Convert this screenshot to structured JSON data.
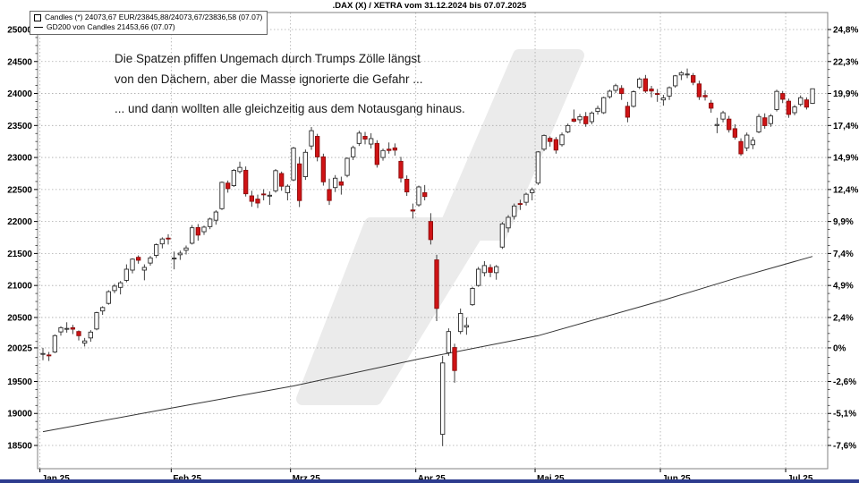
{
  "title": ".DAX (X) / XETRA vom 31.12.2024 bis 07.07.2025",
  "legend": {
    "candles": "Candles (*) 24073,67 EUR/23845,88/24073,67/23836,58 (07.07)",
    "gd200": "GD200 von Candles 21453,66 (07.07)"
  },
  "annotation": {
    "line1": "Die Spatzen pfiffen Ungemach durch Trumps Zölle längst",
    "line2": "von den Dächern, aber die Masse ignorierte die Gefahr ...",
    "line3": "... und dann wollten alle gleichzeitig aus dem Notausgang hinaus."
  },
  "colors": {
    "up_candle": "#ffffff",
    "up_border": "#2b2b2b",
    "down_candle": "#cf1315",
    "down_border": "#8c0d0d",
    "wick": "#2b2b2b",
    "ma_line": "#333333",
    "grid": "#aaaaaa",
    "frame": "#808080",
    "watermark": "#ebebeb",
    "footer_bar": "#2d3c8e",
    "text": "#000000"
  },
  "chart_data": {
    "type": "candlestick",
    "instrument": ".DAX (X) / XETRA",
    "period": "31.12.2024 bis 07.07.2025",
    "last_quote": {
      "date": "07.07",
      "close": "24073,67",
      "open": "23845,88",
      "high": "24073,67",
      "low": "23836,58",
      "currency": "EUR"
    },
    "moving_average": {
      "name": "GD200 von Candles",
      "last_value": "21453,66",
      "last_date": "07.07"
    },
    "y_left_labels": [
      25000,
      24500,
      24000,
      23500,
      23000,
      22500,
      22000,
      21500,
      21000,
      20500,
      20025,
      19500,
      19000,
      18500
    ],
    "y_right_percent_labels": [
      "24,8%",
      "22,3%",
      "19,9%",
      "17,4%",
      "14,9%",
      "12,4%",
      "9,9%",
      "7,4%",
      "4,9%",
      "2,4%",
      "0%",
      "-2,6%",
      "-5,1%",
      "-7,6%"
    ],
    "percent_base_value": 20025,
    "y_minor_tick_step": 125,
    "x_months": [
      {
        "label": "Jan 25",
        "day_index": 0
      },
      {
        "label": "Feb 25",
        "day_index": 22
      },
      {
        "label": "Mrz 25",
        "day_index": 42
      },
      {
        "label": "Apr 25",
        "day_index": 63
      },
      {
        "label": "Mai 25",
        "day_index": 83
      },
      {
        "label": "Jun 25",
        "day_index": 104
      },
      {
        "label": "Jul 25",
        "day_index": 125
      }
    ],
    "candles": [
      [
        "02.01",
        19924,
        20025,
        19832,
        19937
      ],
      [
        "03.01",
        19914,
        19961,
        19820,
        19906
      ],
      [
        "06.01",
        19960,
        20236,
        19943,
        20216
      ],
      [
        "07.01",
        20274,
        20363,
        20216,
        20340
      ],
      [
        "08.01",
        20318,
        20425,
        20263,
        20329
      ],
      [
        "09.01",
        20340,
        20385,
        20240,
        20317
      ],
      [
        "10.01",
        20280,
        20298,
        20141,
        20215
      ],
      [
        "13.01",
        20100,
        20180,
        20046,
        20133
      ],
      [
        "14.01",
        20180,
        20302,
        20120,
        20271
      ],
      [
        "15.01",
        20320,
        20590,
        20300,
        20575
      ],
      [
        "16.01",
        20602,
        20675,
        20540,
        20655
      ],
      [
        "17.01",
        20720,
        20925,
        20700,
        20903
      ],
      [
        "20.01",
        20920,
        21023,
        20880,
        20990
      ],
      [
        "21.01",
        20970,
        21070,
        20860,
        21042
      ],
      [
        "22.01",
        21080,
        21330,
        21050,
        21254
      ],
      [
        "23.01",
        21240,
        21425,
        21190,
        21412
      ],
      [
        "24.01",
        21440,
        21470,
        21340,
        21394
      ],
      [
        "27.01",
        21240,
        21330,
        21081,
        21282
      ],
      [
        "28.01",
        21350,
        21462,
        21310,
        21431
      ],
      [
        "29.01",
        21470,
        21657,
        21430,
        21637
      ],
      [
        "30.01",
        21650,
        21752,
        21580,
        21727
      ],
      [
        "31.01",
        21740,
        21801,
        21640,
        21732
      ],
      [
        "03.02",
        21425,
        21530,
        21252,
        21428
      ],
      [
        "04.02",
        21480,
        21545,
        21400,
        21505
      ],
      [
        "05.02",
        21550,
        21625,
        21485,
        21586
      ],
      [
        "06.02",
        21660,
        21945,
        21640,
        21902
      ],
      [
        "07.02",
        21905,
        21960,
        21700,
        21787
      ],
      [
        "10.02",
        21840,
        21935,
        21790,
        21912
      ],
      [
        "11.02",
        21920,
        22060,
        21880,
        22038
      ],
      [
        "12.02",
        22020,
        22176,
        21950,
        22148
      ],
      [
        "13.02",
        22200,
        22625,
        22180,
        22612
      ],
      [
        "14.02",
        22600,
        22640,
        22450,
        22513
      ],
      [
        "17.02",
        22560,
        22820,
        22540,
        22799
      ],
      [
        "18.02",
        22780,
        22935,
        22750,
        22845
      ],
      [
        "19.02",
        22800,
        22860,
        22390,
        22433
      ],
      [
        "20.02",
        22400,
        22480,
        22230,
        22315
      ],
      [
        "21.02",
        22350,
        22420,
        22210,
        22288
      ],
      [
        "24.02",
        22430,
        22505,
        22330,
        22425
      ],
      [
        "25.02",
        22400,
        22470,
        22260,
        22410
      ],
      [
        "26.02",
        22480,
        22820,
        22450,
        22794
      ],
      [
        "27.02",
        22750,
        22780,
        22480,
        22551
      ],
      [
        "28.02",
        22450,
        22580,
        22330,
        22551
      ],
      [
        "03.03",
        22650,
        23166,
        22630,
        23147
      ],
      [
        "04.03",
        22900,
        23010,
        22226,
        22327
      ],
      [
        "05.03",
        22700,
        23125,
        22650,
        23081
      ],
      [
        "06.03",
        23180,
        23476,
        23120,
        23419
      ],
      [
        "07.03",
        23330,
        23370,
        22940,
        23009
      ],
      [
        "10.03",
        23010,
        23060,
        22560,
        22620
      ],
      [
        "11.03",
        22500,
        22670,
        22258,
        22328
      ],
      [
        "12.03",
        22530,
        22725,
        22460,
        22676
      ],
      [
        "13.03",
        22620,
        22700,
        22420,
        22567
      ],
      [
        "14.03",
        22720,
        23000,
        22690,
        22987
      ],
      [
        "17.03",
        23010,
        23185,
        22960,
        23154
      ],
      [
        "18.03",
        23220,
        23419,
        23180,
        23381
      ],
      [
        "19.03",
        23330,
        23400,
        23205,
        23288
      ],
      [
        "20.03",
        23210,
        23380,
        23140,
        23295
      ],
      [
        "21.03",
        23220,
        23270,
        22842,
        22891
      ],
      [
        "24.03",
        23000,
        23140,
        22950,
        23109
      ],
      [
        "25.03",
        23130,
        23235,
        23060,
        23110
      ],
      [
        "26.03",
        23150,
        23220,
        23030,
        23115
      ],
      [
        "27.03",
        22940,
        23010,
        22610,
        22679
      ],
      [
        "28.03",
        22660,
        22720,
        22400,
        22462
      ],
      [
        "31.03",
        22180,
        22280,
        22046,
        22163
      ],
      [
        "01.04",
        22260,
        22560,
        22230,
        22540
      ],
      [
        "02.04",
        22450,
        22570,
        22330,
        22390
      ],
      [
        "03.04",
        22000,
        22130,
        21640,
        21717
      ],
      [
        "04.04",
        21400,
        21480,
        20444,
        20642
      ],
      [
        "07.04",
        18674,
        19900,
        18489,
        19789
      ],
      [
        "08.04",
        19950,
        20330,
        19900,
        20280
      ],
      [
        "09.04",
        20030,
        20090,
        19480,
        19671
      ],
      [
        "10.04",
        20280,
        20640,
        20240,
        20563
      ],
      [
        "11.04",
        20350,
        20500,
        20230,
        20374
      ],
      [
        "14.04",
        20700,
        20980,
        20680,
        20954
      ],
      [
        "15.04",
        21000,
        21290,
        20980,
        21254
      ],
      [
        "16.04",
        21200,
        21380,
        21142,
        21311
      ],
      [
        "17.04",
        21280,
        21330,
        21130,
        21206
      ],
      [
        "22.04",
        21200,
        21320,
        21090,
        21294
      ],
      [
        "23.04",
        21600,
        21990,
        21570,
        21962
      ],
      [
        "24.04",
        21900,
        22100,
        21830,
        22065
      ],
      [
        "25.04",
        22080,
        22280,
        22030,
        22242
      ],
      [
        "28.04",
        22280,
        22340,
        22180,
        22272
      ],
      [
        "29.04",
        22300,
        22450,
        22250,
        22426
      ],
      [
        "30.04",
        22450,
        22530,
        22330,
        22497
      ],
      [
        "02.05",
        22600,
        23100,
        22570,
        23087
      ],
      [
        "05.05",
        23130,
        23360,
        23100,
        23345
      ],
      [
        "06.05",
        23300,
        23330,
        23170,
        23250
      ],
      [
        "07.05",
        23280,
        23320,
        23060,
        23116
      ],
      [
        "08.05",
        23200,
        23390,
        23170,
        23353
      ],
      [
        "09.05",
        23400,
        23530,
        23380,
        23499
      ],
      [
        "12.05",
        23600,
        23750,
        23550,
        23567
      ],
      [
        "13.05",
        23590,
        23680,
        23530,
        23639
      ],
      [
        "14.05",
        23640,
        23710,
        23480,
        23527
      ],
      [
        "15.05",
        23560,
        23720,
        23520,
        23695
      ],
      [
        "16.05",
        23720,
        23810,
        23670,
        23767
      ],
      [
        "19.05",
        23700,
        23950,
        23680,
        23935
      ],
      [
        "20.05",
        23950,
        24060,
        23920,
        24036
      ],
      [
        "21.05",
        24050,
        24152,
        24010,
        24122
      ],
      [
        "22.05",
        24080,
        24130,
        23900,
        23999
      ],
      [
        "23.05",
        23800,
        23870,
        23550,
        23630
      ],
      [
        "26.05",
        23800,
        24050,
        23780,
        24028
      ],
      [
        "27.05",
        24100,
        24250,
        24070,
        24226
      ],
      [
        "28.05",
        24230,
        24290,
        24010,
        24038
      ],
      [
        "29.05",
        24070,
        24120,
        23940,
        24039
      ],
      [
        "30.05",
        24000,
        24070,
        23870,
        23997
      ],
      [
        "02.06",
        23900,
        23980,
        23810,
        23931
      ],
      [
        "03.06",
        23960,
        24110,
        23900,
        24091
      ],
      [
        "04.06",
        24120,
        24290,
        24090,
        24276
      ],
      [
        "05.06",
        24290,
        24350,
        24210,
        24324
      ],
      [
        "06.06",
        24300,
        24390,
        24240,
        24304
      ],
      [
        "09.06",
        24280,
        24320,
        24130,
        24174
      ],
      [
        "10.06",
        24150,
        24200,
        23900,
        23949
      ],
      [
        "11.06",
        23970,
        24050,
        23890,
        23948
      ],
      [
        "12.06",
        23850,
        23900,
        23700,
        23771
      ],
      [
        "13.06",
        23500,
        23620,
        23380,
        23516
      ],
      [
        "16.06",
        23600,
        23730,
        23550,
        23699
      ],
      [
        "17.06",
        23600,
        23650,
        23390,
        23435
      ],
      [
        "18.06",
        23450,
        23520,
        23280,
        23317
      ],
      [
        "19.06",
        23250,
        23300,
        23025,
        23057
      ],
      [
        "20.06",
        23150,
        23390,
        23100,
        23350
      ],
      [
        "23.06",
        23200,
        23320,
        23130,
        23269
      ],
      [
        "24.06",
        23400,
        23680,
        23380,
        23641
      ],
      [
        "25.06",
        23620,
        23690,
        23450,
        23498
      ],
      [
        "26.06",
        23530,
        23680,
        23480,
        23649
      ],
      [
        "27.06",
        23750,
        24060,
        23720,
        24033
      ],
      [
        "30.06",
        24000,
        24040,
        23850,
        23910
      ],
      [
        "01.07",
        23880,
        23920,
        23620,
        23673
      ],
      [
        "02.07",
        23700,
        23820,
        23660,
        23790
      ],
      [
        "03.07",
        23830,
        23970,
        23800,
        23934
      ],
      [
        "04.07",
        23900,
        23940,
        23750,
        23787
      ],
      [
        "07.07",
        23846,
        24074,
        23837,
        24074
      ]
    ],
    "gd200_points": [
      [
        0,
        18715
      ],
      [
        21,
        19075
      ],
      [
        42,
        19430
      ],
      [
        63,
        19850
      ],
      [
        83,
        20215
      ],
      [
        104,
        20770
      ],
      [
        116,
        21110
      ],
      [
        129,
        21454
      ]
    ]
  }
}
